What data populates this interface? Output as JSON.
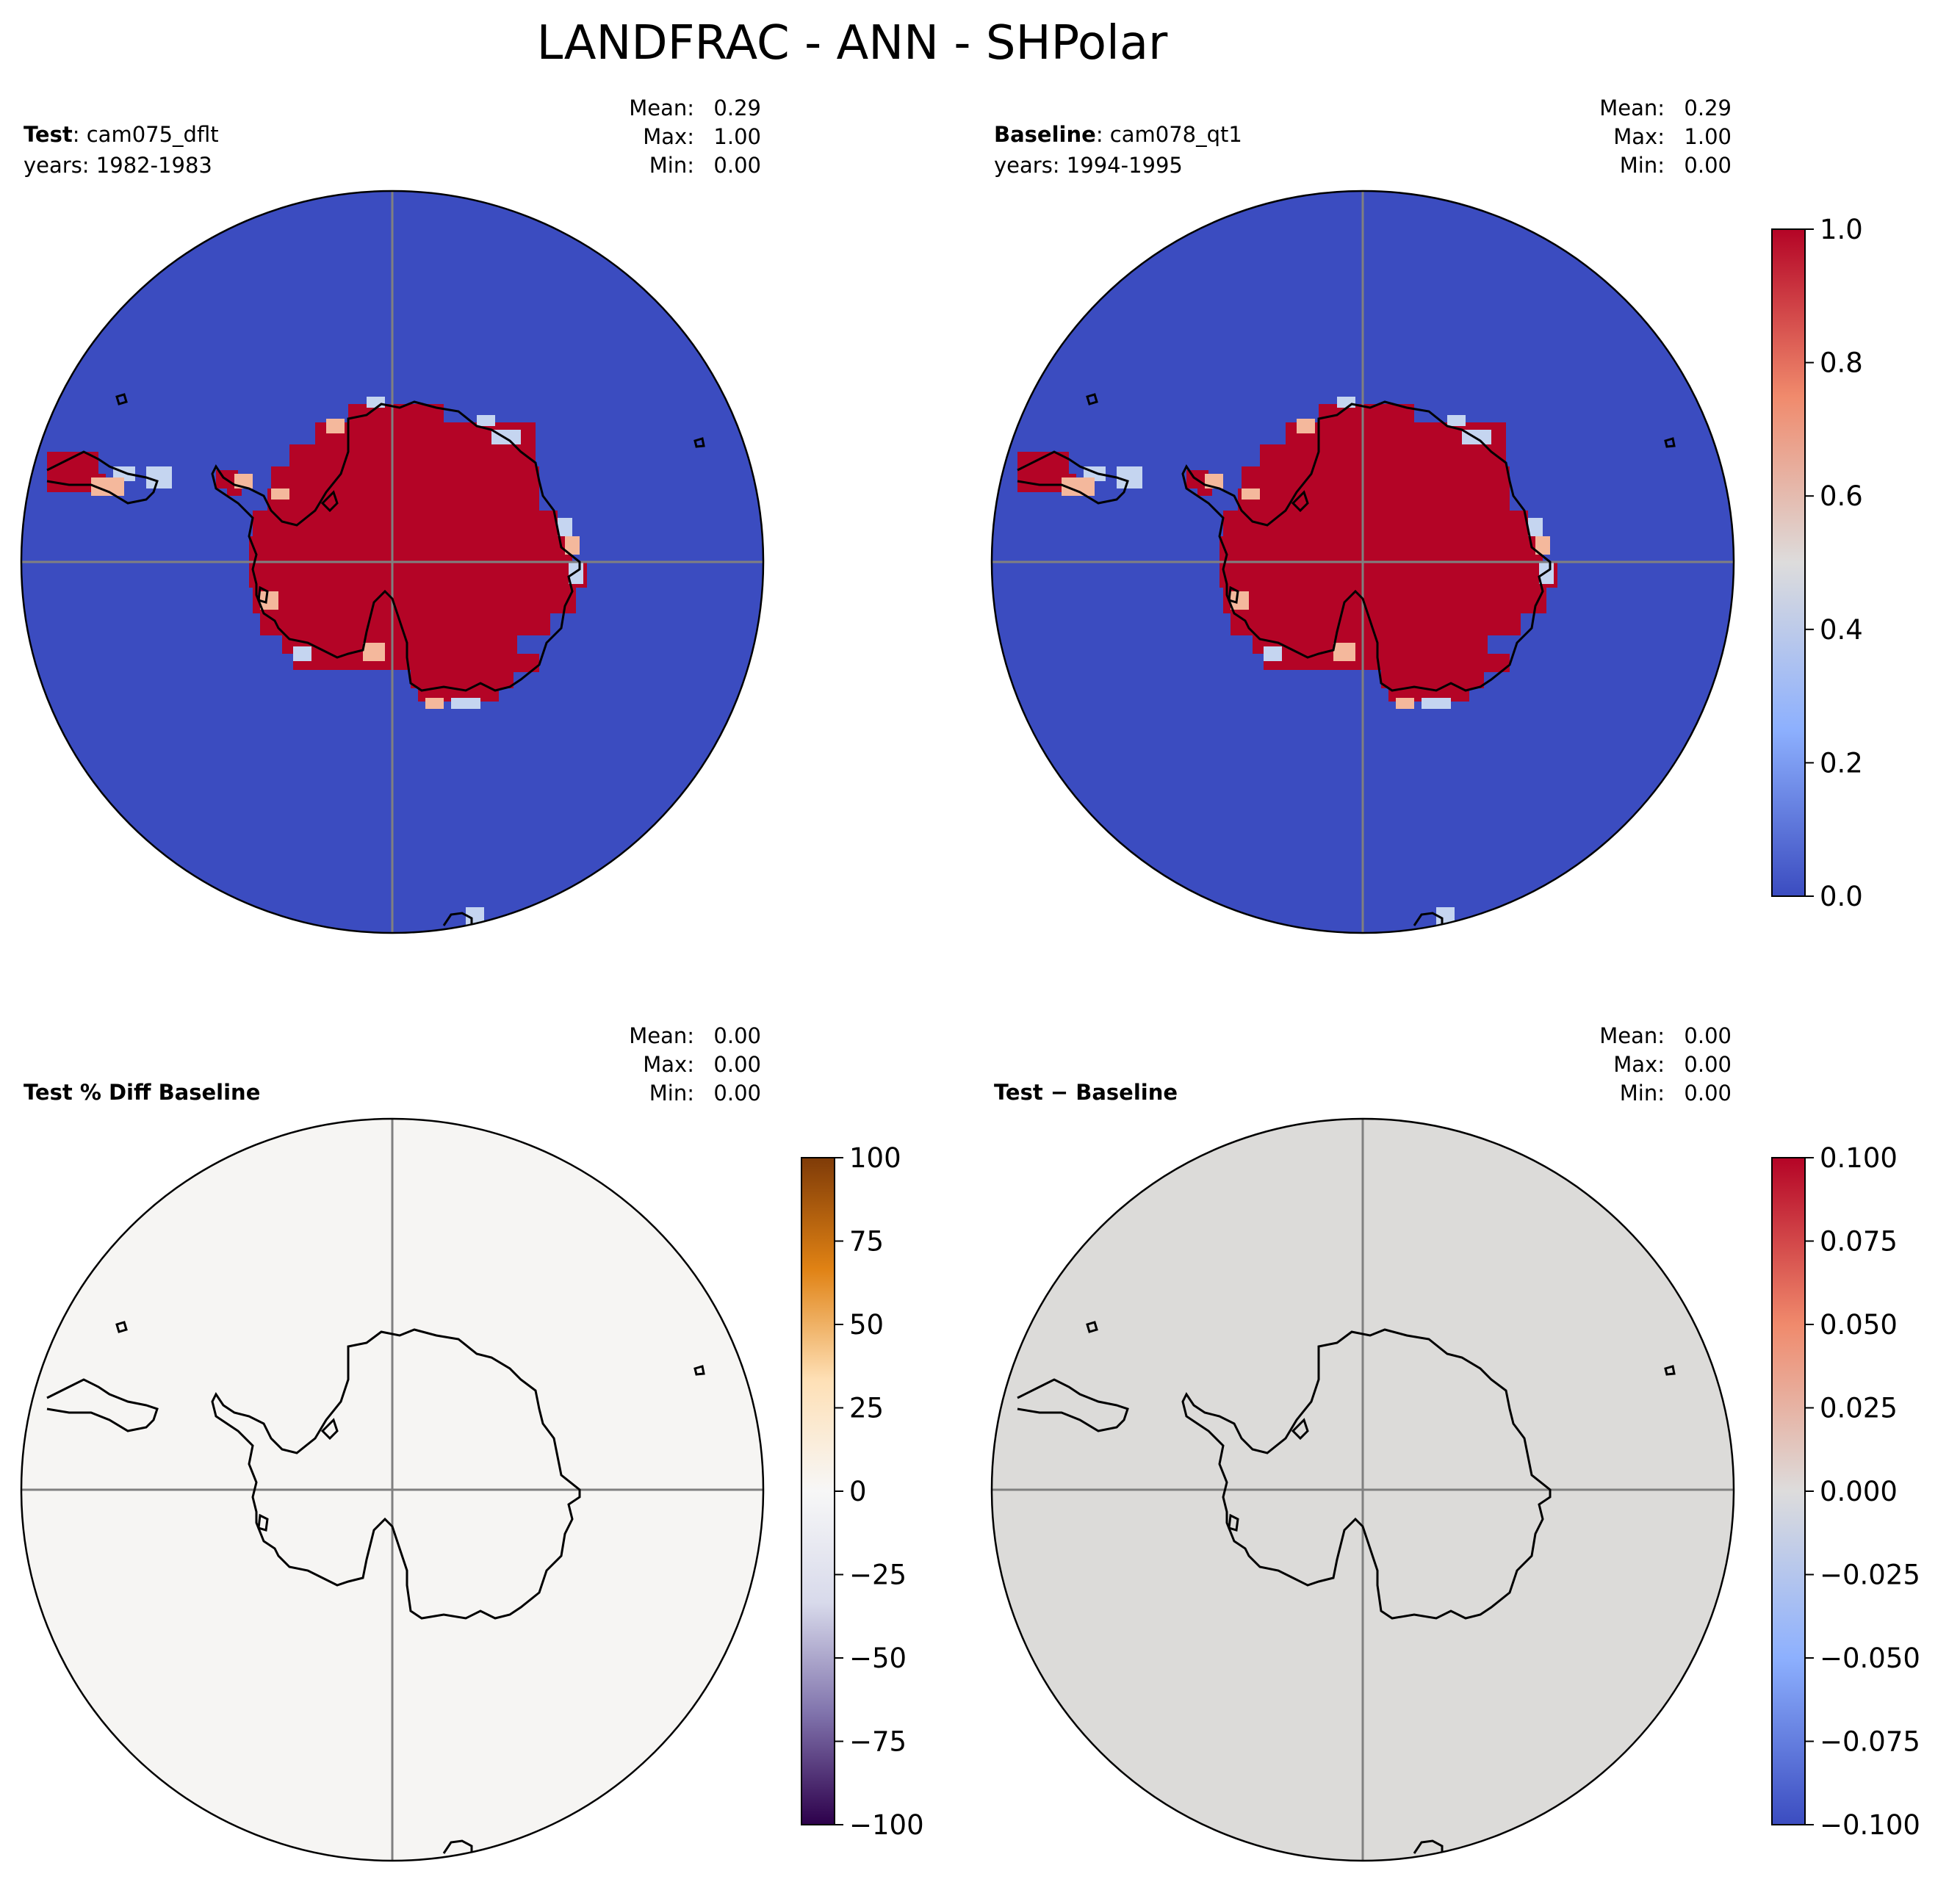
{
  "figure": {
    "title": "LANDFRAC - ANN - SHPolar"
  },
  "panels": {
    "test": {
      "label_bold": "Test",
      "label_rest": ": cam075_dflt",
      "years": "years: 1982-1983",
      "stats": {
        "mean_label": "Mean:",
        "mean": "0.29",
        "max_label": "Max:",
        "max": "1.00",
        "min_label": "Min:",
        "min": "0.00"
      }
    },
    "baseline": {
      "label_bold": "Baseline",
      "label_rest": ": cam078_qt1",
      "years": "years: 1994-1995",
      "stats": {
        "mean_label": "Mean:",
        "mean": "0.29",
        "max_label": "Max:",
        "max": "1.00",
        "min_label": "Min:",
        "min": "0.00"
      }
    },
    "pctdiff": {
      "label": "Test % Diff Baseline",
      "stats": {
        "mean_label": "Mean:",
        "mean": "0.00",
        "max_label": "Max:",
        "max": "0.00",
        "min_label": "Min:",
        "min": "0.00"
      }
    },
    "diff": {
      "label": "Test − Baseline",
      "stats": {
        "mean_label": "Mean:",
        "mean": "0.00",
        "max_label": "Max:",
        "max": "0.00",
        "min_label": "Min:",
        "min": "0.00"
      }
    }
  },
  "colorbars": {
    "landfrac": {
      "ticks": [
        "1.0",
        "0.8",
        "0.6",
        "0.4",
        "0.2",
        "0.0"
      ],
      "colors": [
        "#b40426",
        "#f08a6c",
        "#dddcdc",
        "#8db0fe",
        "#3b4cc0"
      ]
    },
    "pctdiff": {
      "ticks": [
        "100",
        "75",
        "50",
        "25",
        "0",
        "−25",
        "−50",
        "−75",
        "−100"
      ],
      "colors": [
        "#7f3b08",
        "#e08214",
        "#fee0b6",
        "#f7f7f7",
        "#d8daeb",
        "#8073ac",
        "#2d004b"
      ]
    },
    "diff": {
      "ticks": [
        "0.100",
        "0.075",
        "0.050",
        "0.025",
        "0.000",
        "−0.025",
        "−0.050",
        "−0.075",
        "−0.100"
      ],
      "colors": [
        "#b40426",
        "#f08a6c",
        "#dddcdc",
        "#8db0fe",
        "#3b4cc0"
      ]
    }
  },
  "map_colors": {
    "ocean_landfrac": "#3b4cc0",
    "land_landfrac": "#b40426",
    "coast_mid": "#f4b89c",
    "coast_light": "#c5d5f0",
    "pctdiff_fill": "#f6f5f3",
    "diff_fill": "#dcdbd9"
  }
}
